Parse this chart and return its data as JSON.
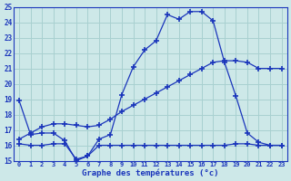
{
  "xlabel": "Graphe des températures (°c)",
  "xlim": [
    -0.5,
    23.5
  ],
  "ylim": [
    15,
    25
  ],
  "yticks": [
    15,
    16,
    17,
    18,
    19,
    20,
    21,
    22,
    23,
    24,
    25
  ],
  "xticks": [
    0,
    1,
    2,
    3,
    4,
    5,
    6,
    7,
    8,
    9,
    10,
    11,
    12,
    13,
    14,
    15,
    16,
    17,
    18,
    19,
    20,
    21,
    22,
    23
  ],
  "background_color": "#cde8e8",
  "grid_color": "#a8d0d0",
  "line_color": "#1a35bb",
  "line1_x": [
    0,
    1,
    2,
    3,
    4,
    5,
    6,
    7,
    8,
    9,
    10,
    11,
    12,
    13,
    14,
    15,
    16,
    17,
    18,
    19,
    20,
    21,
    22,
    23
  ],
  "line1_y": [
    18.9,
    16.7,
    16.8,
    16.8,
    16.3,
    15.0,
    15.3,
    16.4,
    16.7,
    19.3,
    21.1,
    22.2,
    22.8,
    24.5,
    24.2,
    24.7,
    24.7,
    24.1,
    21.4,
    19.2,
    16.8,
    16.2,
    16.0,
    16.0
  ],
  "line2_x": [
    0,
    1,
    2,
    3,
    4,
    5,
    6,
    7,
    8,
    9,
    10,
    11,
    12,
    13,
    14,
    15,
    16,
    17,
    18,
    19,
    20,
    21,
    22,
    23
  ],
  "line2_y": [
    16.4,
    16.8,
    17.2,
    17.4,
    17.4,
    17.3,
    17.2,
    17.3,
    17.7,
    18.2,
    18.6,
    19.0,
    19.4,
    19.8,
    20.2,
    20.6,
    21.0,
    21.4,
    21.5,
    21.5,
    21.4,
    21.0,
    21.0,
    21.0
  ],
  "line3_x": [
    0,
    1,
    2,
    3,
    4,
    5,
    6,
    7,
    8,
    9,
    10,
    11,
    12,
    13,
    14,
    15,
    16,
    17,
    18,
    19,
    20,
    21,
    22,
    23
  ],
  "line3_y": [
    16.1,
    16.0,
    16.0,
    16.1,
    16.1,
    15.1,
    15.3,
    16.0,
    16.0,
    16.0,
    16.0,
    16.0,
    16.0,
    16.0,
    16.0,
    16.0,
    16.0,
    16.0,
    16.0,
    16.1,
    16.1,
    16.0,
    16.0,
    16.0
  ]
}
